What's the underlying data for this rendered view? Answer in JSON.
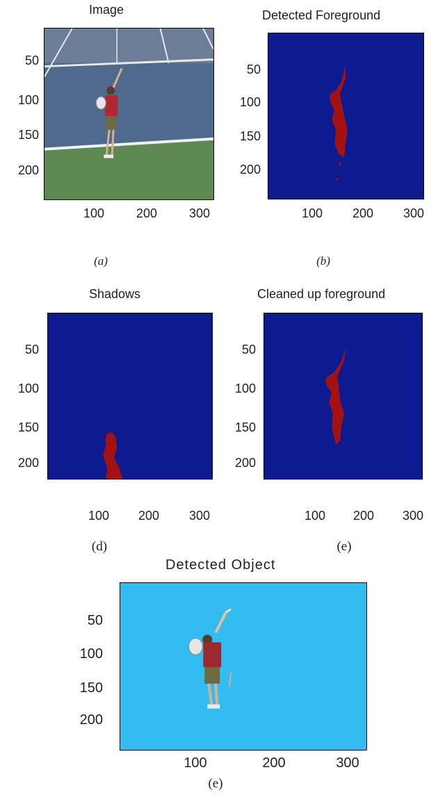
{
  "panels": {
    "a": {
      "title": "Image",
      "caption": "(a)",
      "yticks": [
        "50",
        "100",
        "150",
        "200"
      ],
      "xticks": [
        "100",
        "200",
        "300"
      ],
      "colors": {
        "court": "#4f6a8c",
        "grass": "#5d8a52",
        "player": "#b2262e",
        "lines": "#f2f2f2"
      }
    },
    "b": {
      "title": "Detected Foreground",
      "caption": "(b)",
      "yticks": [
        "50",
        "100",
        "150",
        "200"
      ],
      "xticks": [
        "100",
        "200",
        "300"
      ],
      "colors": {
        "background": "#0e1a8f",
        "foreground": "#a31212"
      }
    },
    "d": {
      "title": "Shadows",
      "caption": "(d)",
      "yticks": [
        "50",
        "100",
        "150",
        "200"
      ],
      "xticks": [
        "100",
        "200",
        "300"
      ],
      "colors": {
        "background": "#0e1a8f",
        "foreground": "#a31212"
      }
    },
    "e": {
      "title": "Cleaned up foreground",
      "caption": "(e)",
      "yticks": [
        "50",
        "100",
        "150",
        "200"
      ],
      "xticks": [
        "100",
        "200",
        "300"
      ],
      "colors": {
        "background": "#0e1a8f",
        "foreground": "#a31212"
      }
    },
    "f": {
      "title": "Detected Object",
      "caption": "(e)",
      "yticks": [
        "50",
        "100",
        "150",
        "200"
      ],
      "xticks": [
        "100",
        "200",
        "300"
      ],
      "colors": {
        "background": "#33bcf0",
        "player": "#9b2a30"
      }
    }
  }
}
